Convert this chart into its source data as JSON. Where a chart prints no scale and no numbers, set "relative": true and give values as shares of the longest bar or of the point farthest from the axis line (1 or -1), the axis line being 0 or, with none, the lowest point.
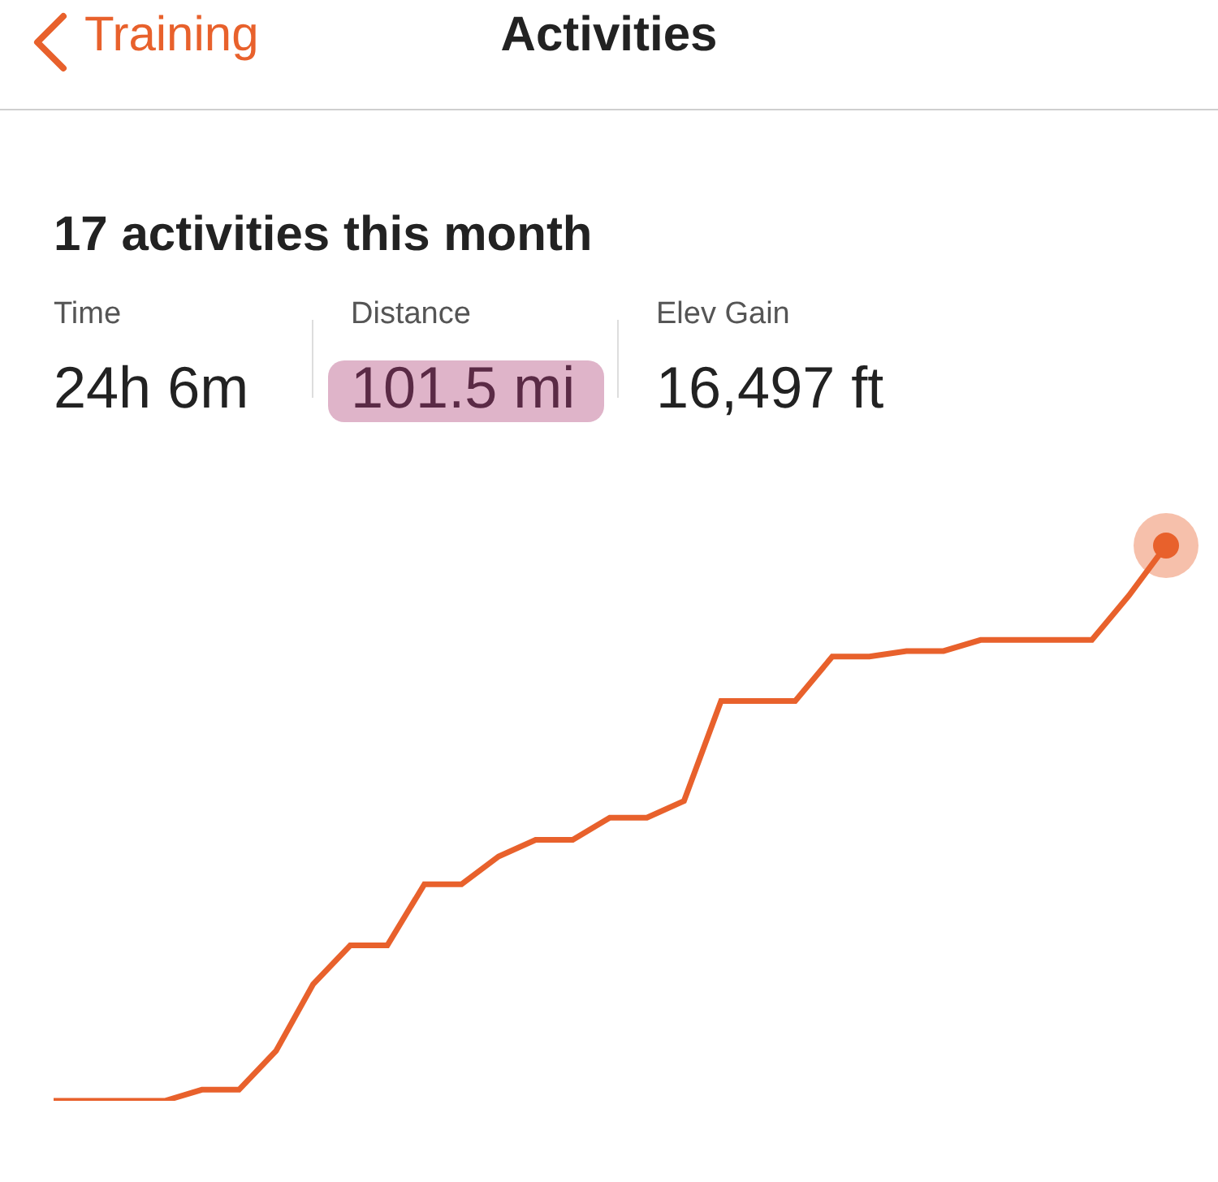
{
  "chart_data": {
    "type": "line",
    "title": "17 activities this month",
    "annotations": [
      "Training",
      "Activities",
      "Time",
      "24h 6m",
      "Distance",
      "101.5 mi",
      "Elev Gain",
      "16,497 ft"
    ],
    "categories": [
      null,
      null,
      null,
      null,
      null,
      null,
      null,
      null,
      null,
      null,
      null,
      null,
      null,
      null,
      null,
      null,
      null,
      null,
      null,
      null,
      null,
      null,
      null,
      null,
      null,
      null,
      null,
      null,
      null,
      null,
      null
    ],
    "relative": true,
    "series": [
      {
        "color": "#e8612c",
        "values": [
          0,
          0,
          0,
          0,
          0.02,
          0.02,
          0.09,
          0.21,
          0.28,
          0.28,
          0.39,
          0.39,
          0.44,
          0.47,
          0.47,
          0.51,
          0.51,
          0.54,
          0.72,
          0.72,
          0.72,
          0.8,
          0.8,
          0.81,
          0.81,
          0.83,
          0.83,
          0.83,
          0.83,
          0.91,
          1
        ]
      }
    ]
  }
}
